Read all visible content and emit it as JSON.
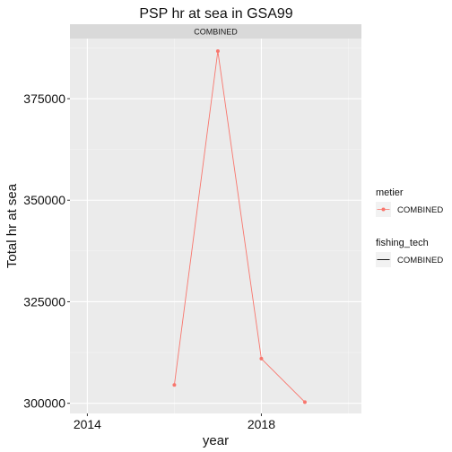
{
  "chart_data": {
    "type": "line",
    "title": "PSP hr at sea in GSA99",
    "facet_label": "COMBINED",
    "xlabel": "year",
    "ylabel": "Total hr at sea",
    "x_ticks": [
      2014,
      2018
    ],
    "y_ticks": [
      300000,
      325000,
      350000,
      375000
    ],
    "y_tick_labels": [
      "300000",
      "325000",
      "350000",
      "375000"
    ],
    "x_tick_labels": [
      "2014",
      "2018"
    ],
    "xlim": [
      2013.6,
      2020.3
    ],
    "ylim": [
      297500,
      389800
    ],
    "grid": true,
    "legend_position": "right",
    "series": [
      {
        "metier": "COMBINED",
        "fishing_tech": "COMBINED",
        "color": "#F8766D",
        "x": [
          2016,
          2017,
          2018,
          2019
        ],
        "y": [
          304500,
          386700,
          311000,
          300300
        ]
      }
    ],
    "legends": [
      {
        "title": "metier",
        "label": "COMBINED",
        "style": "line-point",
        "color": "#F8766D"
      },
      {
        "title": "fishing_tech",
        "label": "COMBINED",
        "style": "line",
        "color": "#000000"
      }
    ]
  }
}
